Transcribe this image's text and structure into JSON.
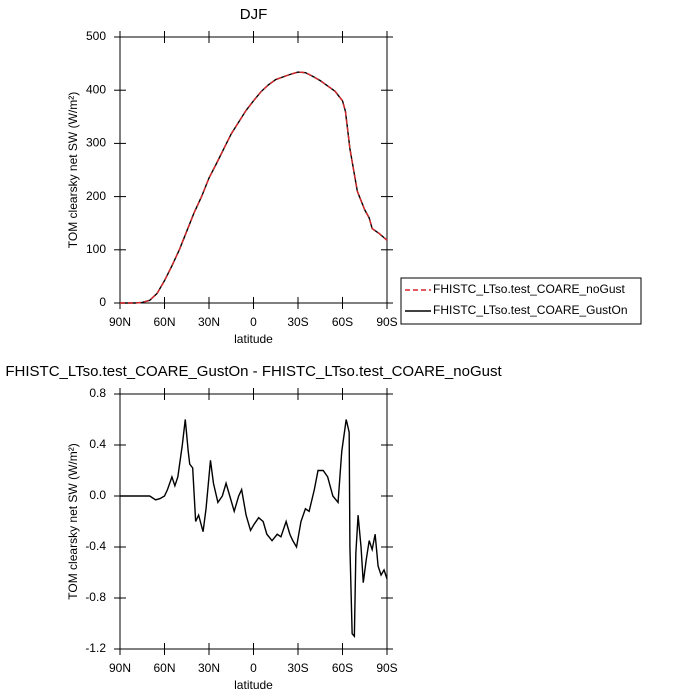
{
  "chart_data": [
    {
      "type": "line",
      "title": "DJF",
      "xlabel": "latitude",
      "ylabel": "TOM clearsky net SW (W/m²)",
      "x": [
        90,
        85,
        80,
        75,
        70,
        65,
        60,
        55,
        50,
        45,
        40,
        35,
        30,
        25,
        20,
        15,
        10,
        5,
        0,
        -5,
        -10,
        -15,
        -20,
        -25,
        -30,
        -35,
        -40,
        -45,
        -50,
        -55,
        -60,
        -62,
        -65,
        -70,
        -75,
        -78,
        -80,
        -85,
        -90
      ],
      "series": [
        {
          "name": "FHISTC_LTso.test_COARE_noGust",
          "color": "#d62728",
          "dashed": true,
          "values": [
            0,
            0,
            0,
            1,
            5,
            18,
            42,
            70,
            100,
            135,
            170,
            200,
            235,
            262,
            290,
            318,
            340,
            362,
            380,
            397,
            410,
            420,
            425,
            430,
            434,
            433,
            426,
            418,
            408,
            398,
            380,
            360,
            290,
            210,
            175,
            160,
            140,
            130,
            118
          ]
        },
        {
          "name": "FHISTC_LTso.test_COARE_GustOn",
          "color": "#000000",
          "dashed": false,
          "values": [
            0,
            0,
            0,
            1,
            5,
            18,
            42,
            70,
            100,
            135,
            170,
            200,
            235,
            262,
            290,
            318,
            340,
            362,
            380,
            397,
            410,
            420,
            425,
            430,
            434,
            433,
            426,
            418,
            408,
            398,
            380,
            360,
            290,
            210,
            175,
            160,
            140,
            130,
            118
          ]
        }
      ],
      "xlim": [
        90,
        -90
      ],
      "xticks": [
        {
          "value": 90,
          "label": "90N"
        },
        {
          "value": 60,
          "label": "60N"
        },
        {
          "value": 30,
          "label": "30N"
        },
        0,
        {
          "value": -30,
          "label": "30S"
        },
        {
          "value": -60,
          "label": "60S"
        },
        {
          "value": -90,
          "label": "90S"
        }
      ],
      "ylim": [
        0,
        500
      ],
      "yticks": [
        0,
        100,
        200,
        300,
        400,
        500
      ],
      "legend": "right"
    },
    {
      "type": "line",
      "title": "FHISTC_LTso.test_COARE_GustOn - FHISTC_LTso.test_COARE_noGust",
      "xlabel": "latitude",
      "ylabel": "TOM clearsky net SW (W/m²)",
      "x": [
        90,
        80,
        73,
        70,
        66,
        63,
        60,
        58,
        55,
        53,
        51,
        48,
        46,
        44,
        43,
        41,
        39,
        37,
        34,
        32,
        29,
        27,
        24,
        21,
        18.5,
        16,
        13,
        10,
        8,
        5,
        2,
        -0.5,
        -3.5,
        -6.5,
        -9,
        -12.5,
        -16,
        -18.5,
        -22,
        -24.5,
        -26.5,
        -29,
        -32,
        -35,
        -37.5,
        -41,
        -43.5,
        -47,
        -50,
        -53.5,
        -57,
        -59.5,
        -62.5,
        -64.5,
        -65,
        -66.5,
        -68,
        -69,
        -70.5,
        -72.5,
        -74,
        -76,
        -78,
        -80,
        -82,
        -84,
        -86,
        -88,
        -90
      ],
      "values": [
        0,
        0,
        0,
        0,
        -0.03,
        -0.02,
        0,
        0.05,
        0.15,
        0.08,
        0.15,
        0.4,
        0.6,
        0.35,
        0.25,
        0.22,
        -0.2,
        -0.15,
        -0.28,
        -0.1,
        0.28,
        0.1,
        -0.05,
        0,
        0.1,
        0,
        -0.12,
        0,
        0.05,
        -0.15,
        -0.27,
        -0.22,
        -0.17,
        -0.2,
        -0.3,
        -0.35,
        -0.3,
        -0.32,
        -0.2,
        -0.3,
        -0.35,
        -0.4,
        -0.2,
        -0.1,
        -0.12,
        0.05,
        0.2,
        0.2,
        0.15,
        0,
        -0.05,
        0.35,
        0.6,
        0.5,
        -0.4,
        -1.08,
        -1.1,
        -0.45,
        -0.15,
        -0.4,
        -0.68,
        -0.5,
        -0.35,
        -0.42,
        -0.3,
        -0.55,
        -0.62,
        -0.58,
        -0.65
      ],
      "color": "#000000",
      "xlim": [
        90,
        -90
      ],
      "xticks": [
        {
          "value": 90,
          "label": "90N"
        },
        {
          "value": 60,
          "label": "60N"
        },
        {
          "value": 30,
          "label": "30N"
        },
        0,
        {
          "value": -30,
          "label": "30S"
        },
        {
          "value": -60,
          "label": "60S"
        },
        {
          "value": -90,
          "label": "90S"
        }
      ],
      "ylim": [
        -1.2,
        0.8
      ],
      "yticks": [
        0.8,
        0.4,
        {
          "value": 0,
          "label": "0.0"
        },
        -0.4,
        -0.8,
        -1.2
      ]
    }
  ]
}
